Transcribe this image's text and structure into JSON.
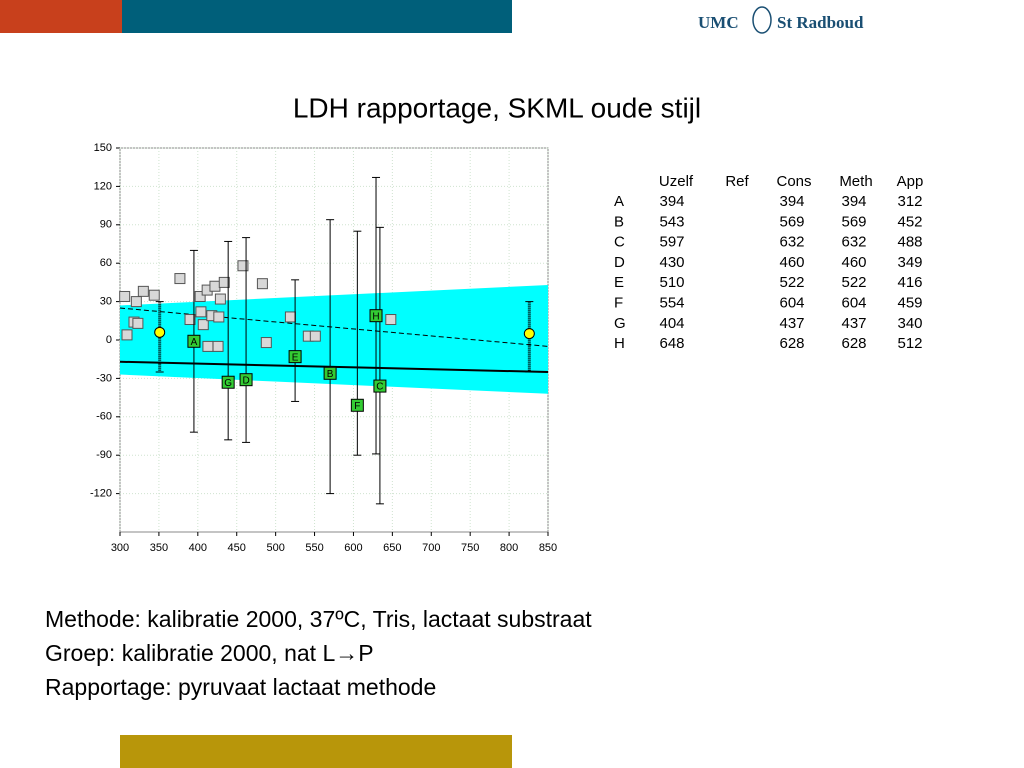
{
  "header": {
    "logo_left": "UMC",
    "logo_right": "St Radboud"
  },
  "title": "LDH rapportage, SKML oude stijl",
  "chart_data": {
    "type": "scatter",
    "xlim": [
      300,
      850
    ],
    "xticks": [
      300,
      350,
      400,
      450,
      500,
      550,
      600,
      650,
      700,
      750,
      800,
      850
    ],
    "ylim": [
      -150,
      150
    ],
    "yticks": [
      150,
      120,
      90,
      60,
      30,
      0,
      -30,
      -60,
      -90,
      -120
    ],
    "grid": true,
    "band": {
      "color": "#00ffff",
      "x": [
        300,
        850
      ],
      "upper": [
        27,
        43
      ],
      "lower": [
        -27,
        -42
      ]
    },
    "lines": [
      {
        "style": "solid",
        "color": "#000000",
        "x": [
          300,
          850
        ],
        "values": [
          -17,
          -25
        ]
      },
      {
        "style": "dashed",
        "color": "#000000",
        "x": [
          300,
          850
        ],
        "values": [
          25,
          -5
        ]
      }
    ],
    "reference_points": {
      "color": "#d8d8d8",
      "x": [
        306,
        309,
        318,
        321,
        323,
        330,
        344,
        377,
        390,
        403,
        404,
        407,
        412,
        413,
        418,
        422,
        426,
        427,
        429,
        434,
        458,
        483,
        488,
        519,
        542,
        551,
        648
      ],
      "values": [
        34,
        4,
        14,
        30,
        13,
        38,
        35,
        48,
        16,
        34,
        22,
        12,
        39,
        -5,
        19,
        42,
        -5,
        18,
        32,
        45,
        58,
        44,
        -2,
        18,
        3,
        3,
        16
      ]
    },
    "samples": {
      "color": "#33cc33",
      "labels": [
        "A",
        "B",
        "C",
        "D",
        "E",
        "F",
        "G",
        "H"
      ],
      "x": [
        395,
        570,
        634,
        462,
        525,
        605,
        439,
        629
      ],
      "values": [
        -1,
        -26,
        -36,
        -31,
        -13,
        -51,
        -33,
        19
      ],
      "low": [
        -72,
        -120,
        -128,
        -80,
        -48,
        -90,
        -78,
        -89
      ],
      "high": [
        70,
        94,
        88,
        80,
        47,
        85,
        77,
        127
      ]
    },
    "mean_points": {
      "color": "#ffff00",
      "x": [
        351,
        826
      ],
      "values": [
        6,
        5
      ],
      "low": [
        -25,
        -25
      ],
      "high": [
        30,
        30
      ]
    }
  },
  "table": {
    "header": [
      "Uzelf",
      "Ref",
      "Cons",
      "Meth",
      "App"
    ],
    "rows": [
      [
        "A",
        394,
        394,
        394,
        312
      ],
      [
        "B",
        543,
        569,
        569,
        452
      ],
      [
        "C",
        597,
        632,
        632,
        488
      ],
      [
        "D",
        430,
        460,
        460,
        349
      ],
      [
        "E",
        510,
        522,
        522,
        416
      ],
      [
        "F",
        554,
        604,
        604,
        459
      ],
      [
        "G",
        404,
        437,
        437,
        340
      ],
      [
        "H",
        648,
        628,
        628,
        512
      ]
    ]
  },
  "text": [
    "Methode: kalibratie 2000, 37ºC, Tris, lactaat substraat",
    "Groep: kalibratie 2000, nat L→P",
    "Rapportage: pyruvaat lactaat methode"
  ]
}
